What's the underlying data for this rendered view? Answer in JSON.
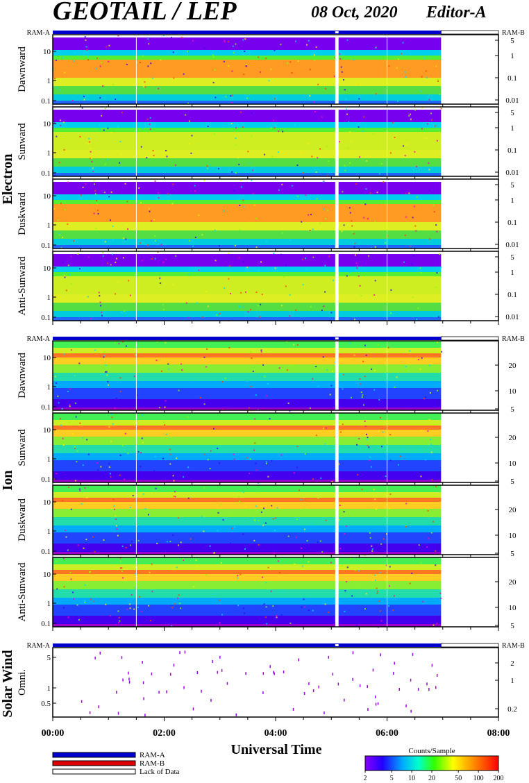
{
  "header": {
    "title": "GEOTAIL / LEP",
    "date": "08 Oct, 2020",
    "editor": "Editor-A"
  },
  "colors": {
    "ram_a": "#0000cc",
    "ram_b": "#dd0000",
    "lack_of_data": "#ffffff",
    "frame": "#000000"
  },
  "chart_data": {
    "type": "heatmap",
    "xlabel": "Universal Time",
    "x_ticks": [
      "00:00",
      "02:00",
      "04:00",
      "06:00",
      "08:00"
    ],
    "x_range_hours": [
      0,
      8
    ],
    "data_coverage_hours": [
      0,
      6.97
    ],
    "data_gap_hours": [
      5.07,
      5.13
    ],
    "sections": [
      {
        "name": "Electron",
        "ram_left": "RAM-A",
        "ram_right": "RAM-B",
        "panels": [
          {
            "label": "Dawnward",
            "left_ticks": [
              "10",
              "1",
              "0.1"
            ],
            "right_ticks": [
              "5",
              "1",
              "0.1",
              "0.01"
            ]
          },
          {
            "label": "Sunward",
            "left_ticks": [
              "10",
              "1",
              "0.1"
            ],
            "right_ticks": [
              "5",
              "1",
              "0.1",
              "0.01"
            ]
          },
          {
            "label": "Duskward",
            "left_ticks": [
              "10",
              "1",
              "0.1"
            ],
            "right_ticks": [
              "5",
              "1",
              "0.1",
              "0.01"
            ]
          },
          {
            "label": "Anti-Sunward",
            "left_ticks": [
              "10",
              "1",
              "0.1"
            ],
            "right_ticks": [
              "5",
              "1",
              "0.1",
              "0.01"
            ]
          }
        ]
      },
      {
        "name": "Ion",
        "ram_left": "RAM-A",
        "ram_right": "RAM-B",
        "panels": [
          {
            "label": "Dawnward",
            "left_ticks": [
              "10",
              "1",
              "0.1"
            ],
            "right_ticks": [
              "20",
              "10",
              "5"
            ]
          },
          {
            "label": "Sunward",
            "left_ticks": [
              "10",
              "1",
              "0.1"
            ],
            "right_ticks": [
              "20",
              "10",
              "5"
            ]
          },
          {
            "label": "Duskward",
            "left_ticks": [
              "10",
              "1",
              "0.1"
            ],
            "right_ticks": [
              "20",
              "10",
              "5"
            ]
          },
          {
            "label": "Anti-Sunward",
            "left_ticks": [
              "10",
              "1",
              "0.1"
            ],
            "right_ticks": [
              "20",
              "10",
              "5"
            ]
          }
        ]
      },
      {
        "name": "Solar Wind",
        "ram_left": "RAM-A",
        "ram_right": "RAM-B",
        "panels": [
          {
            "label": "Omni.",
            "left_ticks": [
              "5",
              "1",
              "0.5"
            ],
            "right_ticks": [
              "2",
              "1",
              "0.2"
            ]
          }
        ]
      }
    ],
    "legend": [
      {
        "label": "RAM-A",
        "color": "#0000cc"
      },
      {
        "label": "RAM-B",
        "color": "#dd0000"
      },
      {
        "label": "Lack of Data",
        "color": "#ffffff"
      }
    ],
    "colorbar": {
      "title": "Counts/Sample",
      "ticks": [
        "2",
        "5",
        "10",
        "20",
        "50",
        "100",
        "200"
      ],
      "scale": "log",
      "range": [
        2,
        200
      ]
    }
  }
}
